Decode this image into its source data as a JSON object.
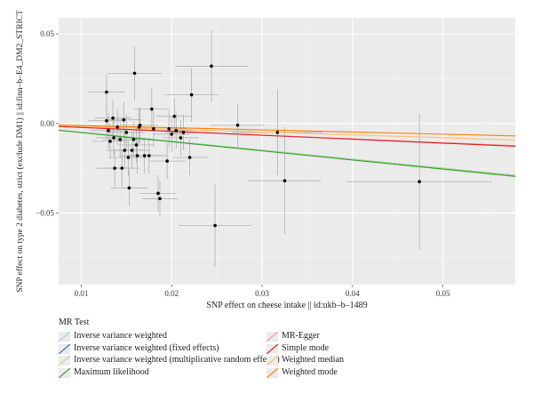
{
  "chart_data": {
    "type": "scatter",
    "title": "",
    "xlabel": "SNP effect on cheese intake || id:ukb–b–1489",
    "ylabel": "SNP effect on type 2 diabetes, strict (exclude DM1) || id:finn–b–E4_DM2_STRICT",
    "xlim": [
      0.0075,
      0.058
    ],
    "ylim": [
      -0.09,
      0.059
    ],
    "x_ticks": [
      0.01,
      0.02,
      0.03,
      0.04,
      0.05
    ],
    "x_tick_labels": [
      "0.01",
      "0.02",
      "0.03",
      "0.04",
      "0.05"
    ],
    "y_ticks": [
      -0.05,
      0.0,
      0.05
    ],
    "y_tick_labels": [
      "−0.05",
      "0.00",
      "0.05"
    ],
    "grid": true,
    "points": [
      {
        "x": 0.0128,
        "y": 0.0175,
        "xerr": 0.002,
        "yerr": 0.01
      },
      {
        "x": 0.0128,
        "y": 0.0015,
        "xerr": 0.002,
        "yerr": 0.01
      },
      {
        "x": 0.013,
        "y": -0.004,
        "xerr": 0.002,
        "yerr": 0.01
      },
      {
        "x": 0.0132,
        "y": -0.01,
        "xerr": 0.002,
        "yerr": 0.01
      },
      {
        "x": 0.0135,
        "y": 0.003,
        "xerr": 0.002,
        "yerr": 0.01
      },
      {
        "x": 0.0136,
        "y": -0.008,
        "xerr": 0.002,
        "yerr": 0.01
      },
      {
        "x": 0.0137,
        "y": -0.025,
        "xerr": 0.002,
        "yerr": 0.01
      },
      {
        "x": 0.014,
        "y": -0.002,
        "xerr": 0.002,
        "yerr": 0.01
      },
      {
        "x": 0.0143,
        "y": -0.009,
        "xerr": 0.002,
        "yerr": 0.01
      },
      {
        "x": 0.0145,
        "y": -0.025,
        "xerr": 0.002,
        "yerr": 0.01
      },
      {
        "x": 0.0147,
        "y": 0.002,
        "xerr": 0.002,
        "yerr": 0.01
      },
      {
        "x": 0.0148,
        "y": -0.015,
        "xerr": 0.002,
        "yerr": 0.01
      },
      {
        "x": 0.015,
        "y": -0.005,
        "xerr": 0.002,
        "yerr": 0.01
      },
      {
        "x": 0.0152,
        "y": -0.019,
        "xerr": 0.002,
        "yerr": 0.01
      },
      {
        "x": 0.0153,
        "y": -0.036,
        "xerr": 0.002,
        "yerr": 0.01
      },
      {
        "x": 0.0156,
        "y": -0.015,
        "xerr": 0.002,
        "yerr": 0.01
      },
      {
        "x": 0.0158,
        "y": -0.009,
        "xerr": 0.002,
        "yerr": 0.01
      },
      {
        "x": 0.0159,
        "y": 0.028,
        "xerr": 0.003,
        "yerr": 0.015
      },
      {
        "x": 0.0161,
        "y": -0.012,
        "xerr": 0.002,
        "yerr": 0.01
      },
      {
        "x": 0.0162,
        "y": -0.018,
        "xerr": 0.002,
        "yerr": 0.01
      },
      {
        "x": 0.0164,
        "y": -0.002,
        "xerr": 0.002,
        "yerr": 0.01
      },
      {
        "x": 0.0165,
        "y": -0.001,
        "xerr": 0.002,
        "yerr": 0.01
      },
      {
        "x": 0.017,
        "y": -0.018,
        "xerr": 0.002,
        "yerr": 0.01
      },
      {
        "x": 0.0175,
        "y": -0.018,
        "xerr": 0.002,
        "yerr": 0.01
      },
      {
        "x": 0.0178,
        "y": 0.008,
        "xerr": 0.002,
        "yerr": 0.012
      },
      {
        "x": 0.018,
        "y": -0.003,
        "xerr": 0.002,
        "yerr": 0.01
      },
      {
        "x": 0.0185,
        "y": -0.039,
        "xerr": 0.002,
        "yerr": 0.01
      },
      {
        "x": 0.0187,
        "y": -0.042,
        "xerr": 0.002,
        "yerr": 0.01
      },
      {
        "x": 0.0195,
        "y": -0.021,
        "xerr": 0.002,
        "yerr": 0.01
      },
      {
        "x": 0.0197,
        "y": -0.003,
        "xerr": 0.002,
        "yerr": 0.01
      },
      {
        "x": 0.02,
        "y": -0.006,
        "xerr": 0.002,
        "yerr": 0.01
      },
      {
        "x": 0.0203,
        "y": 0.004,
        "xerr": 0.002,
        "yerr": 0.01
      },
      {
        "x": 0.0205,
        "y": -0.004,
        "xerr": 0.002,
        "yerr": 0.01
      },
      {
        "x": 0.021,
        "y": -0.008,
        "xerr": 0.002,
        "yerr": 0.01
      },
      {
        "x": 0.0213,
        "y": -0.005,
        "xerr": 0.002,
        "yerr": 0.01
      },
      {
        "x": 0.022,
        "y": -0.019,
        "xerr": 0.002,
        "yerr": 0.01
      },
      {
        "x": 0.0222,
        "y": 0.016,
        "xerr": 0.003,
        "yerr": 0.015
      },
      {
        "x": 0.0244,
        "y": 0.032,
        "xerr": 0.004,
        "yerr": 0.02
      },
      {
        "x": 0.0248,
        "y": -0.057,
        "xerr": 0.004,
        "yerr": 0.023
      },
      {
        "x": 0.0273,
        "y": -0.001,
        "xerr": 0.003,
        "yerr": 0.012
      },
      {
        "x": 0.0317,
        "y": -0.005,
        "xerr": 0.005,
        "yerr": 0.024
      },
      {
        "x": 0.0325,
        "y": -0.032,
        "xerr": 0.004,
        "yerr": 0.03
      },
      {
        "x": 0.0474,
        "y": -0.0325,
        "xerr": 0.008,
        "yerr": 0.038
      }
    ],
    "series": [
      {
        "name": "Inverse variance weighted",
        "type": "line",
        "slope": -0.5,
        "intercept": 0.0,
        "color": "#a6cee3"
      },
      {
        "name": "Inverse variance weighted (fixed effects)",
        "type": "line",
        "slope": -0.5,
        "intercept": 0.0,
        "color": "#1f78b4"
      },
      {
        "name": "Inverse variance weighted (multiplicative random effects)",
        "type": "line",
        "slope": -0.5,
        "intercept": 0.0,
        "color": "#b2df8a"
      },
      {
        "name": "Maximum likelihood",
        "type": "line",
        "slope": -0.51,
        "intercept": 0.0,
        "color": "#33a02c"
      },
      {
        "name": "MR-Egger",
        "type": "line",
        "slope": -0.21,
        "intercept": -0.0002,
        "color": "#fb9a99"
      },
      {
        "name": "Simple mode",
        "type": "line",
        "slope": -0.22,
        "intercept": 0.0,
        "color": "#e31a1c"
      },
      {
        "name": "Weighted median",
        "type": "line",
        "slope": -0.16,
        "intercept": 0.0,
        "color": "#fdbf6f"
      },
      {
        "name": "Weighted mode",
        "type": "line",
        "slope": -0.12,
        "intercept": 0.0,
        "color": "#ff7f00"
      }
    ],
    "legend": {
      "title": "MR Test",
      "placement": "bottom"
    }
  },
  "colors": {
    "panel_background": "#ebebeb",
    "grid_major": "#ffffff",
    "grid_minor": "#f5f5f5",
    "point": "#000000",
    "errorbar": "#a8a8a8"
  }
}
